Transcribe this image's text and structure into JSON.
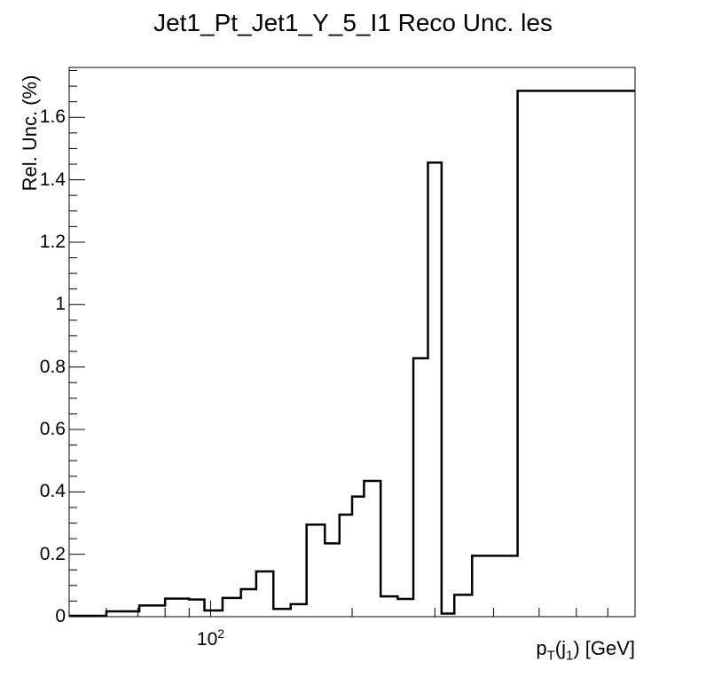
{
  "chart_data": {
    "type": "histogram-step",
    "title": "Jet1_Pt_Jet1_Y_5_I1 Reco Unc. les",
    "ylabel": "Rel. Unc. (%)",
    "xlabel": {
      "p": "p",
      "sub_T": "T",
      "paren_open": "(j",
      "sub_1": "1",
      "rest": ") [GeV]"
    },
    "x_scale": "log",
    "xlim": [
      50,
      800
    ],
    "ylim": [
      0,
      1.76
    ],
    "y_ticks": [
      "0",
      "0.2",
      "0.4",
      "0.6",
      "0.8",
      "1",
      "1.2",
      "1.4",
      "1.6"
    ],
    "y_tick_values": [
      0,
      0.2,
      0.4,
      0.6,
      0.8,
      1.0,
      1.2,
      1.4,
      1.6
    ],
    "x_tick_label": {
      "base": "10",
      "exp": "2",
      "value": 100
    },
    "bin_edges": [
      50,
      55,
      60,
      70,
      70.5,
      71,
      75,
      80,
      85,
      90,
      97,
      106,
      116,
      125,
      136,
      148,
      160,
      175,
      188,
      200,
      212,
      230,
      250,
      270,
      290,
      310,
      330,
      360,
      400,
      450,
      800
    ],
    "values": [
      0.003,
      0.003,
      0.017,
      0.017,
      0.036,
      0.036,
      0.036,
      0.058,
      0.058,
      0.055,
      0.02,
      0.06,
      0.088,
      0.145,
      0.025,
      0.04,
      0.295,
      0.235,
      0.327,
      0.385,
      0.435,
      0.065,
      0.057,
      0.828,
      1.455,
      0.01,
      0.07,
      0.195,
      0.195,
      1.685
    ]
  }
}
